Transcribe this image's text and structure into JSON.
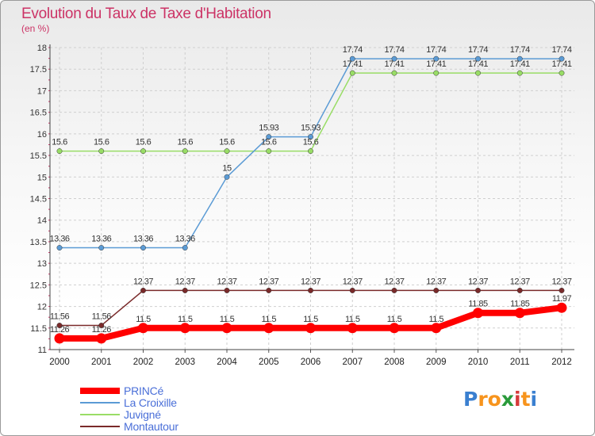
{
  "chart_data": {
    "type": "line",
    "title": "Evolution du Taux de Taxe d'Habitation",
    "subtitle": "(en %)",
    "x": [
      "2000",
      "2001",
      "2002",
      "2003",
      "2004",
      "2005",
      "2006",
      "2007",
      "2008",
      "2009",
      "2010",
      "2011",
      "2012"
    ],
    "ylim": [
      11,
      18
    ],
    "yticks": [
      "11",
      "11.5",
      "12",
      "12.5",
      "13",
      "13.5",
      "14",
      "14.5",
      "15",
      "15.5",
      "16",
      "16.5",
      "17",
      "17.5",
      "18"
    ],
    "series": [
      {
        "name": "PRINCé",
        "color": "#ff0000",
        "values": [
          11.26,
          11.26,
          11.5,
          11.5,
          11.5,
          11.5,
          11.5,
          11.5,
          11.5,
          11.5,
          11.85,
          11.85,
          11.97
        ],
        "labels": [
          "11.26",
          "11.26",
          "11.5",
          "11.5",
          "11.5",
          "11.5",
          "11.5",
          "11.5",
          "11.5",
          "11.5",
          "11.85",
          "11.85",
          "11.97"
        ]
      },
      {
        "name": "La Croixille",
        "color": "#5b9bd5",
        "values": [
          13.36,
          13.36,
          13.36,
          13.36,
          15,
          15.93,
          15.93,
          17.74,
          17.74,
          17.74,
          17.74,
          17.74,
          17.74
        ],
        "labels": [
          "13.36",
          "13.36",
          "13.36",
          "13.36",
          "15",
          "15.93",
          "15.93",
          "17.74",
          "17.74",
          "17.74",
          "17.74",
          "17.74",
          "17.74"
        ]
      },
      {
        "name": "Juvigné",
        "color": "#99dd66",
        "values": [
          15.6,
          15.6,
          15.6,
          15.6,
          15.6,
          15.6,
          15.6,
          17.41,
          17.41,
          17.41,
          17.41,
          17.41,
          17.41
        ],
        "labels": [
          "15.6",
          "15.6",
          "15.6",
          "15.6",
          "15.6",
          "15.6",
          "15.6",
          "17.41",
          "17.41",
          "17.41",
          "17.41",
          "17.41",
          "17.41"
        ]
      },
      {
        "name": "Montautour",
        "color": "#7a2a2a",
        "values": [
          11.56,
          11.56,
          12.37,
          12.37,
          12.37,
          12.37,
          12.37,
          12.37,
          12.37,
          12.37,
          12.37,
          12.37,
          12.37
        ],
        "labels": [
          "11.56",
          "11.56",
          "12.37",
          "12.37",
          "12.37",
          "12.37",
          "12.37",
          "12.37",
          "12.37",
          "12.37",
          "12.37",
          "12.37",
          "12.37"
        ]
      }
    ]
  },
  "logo": {
    "letters": [
      "P",
      "r",
      "o",
      "x",
      "i",
      "t",
      "i"
    ],
    "colors": [
      "#3a7fd0",
      "#f7941d",
      "#f7941d",
      "#2a9a3a",
      "#d63a3a",
      "#f7941d",
      "#3a7fd0"
    ]
  }
}
